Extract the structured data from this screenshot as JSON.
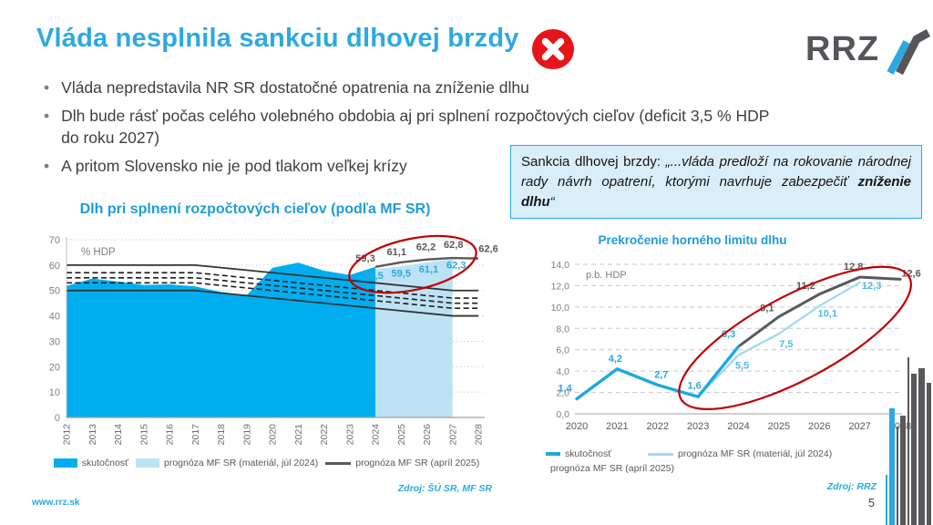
{
  "slide": {
    "title": "Vláda nesplnila sankciu dlhovej brzdy",
    "logo_text": "RRZ",
    "bullets": [
      "Vláda nepredstavila NR SR dostatočné opatrenia na zníženie dlhu",
      "Dlh bude rásť počas celého volebného obdobia aj pri splnení rozpočtových cieľov (deficit 3,5 % HDP\ndo roku 2027)",
      "A pritom Slovensko nie je pod tlakom veľkej krízy"
    ],
    "footer_url": "www.rrz.sk",
    "page_number": "5",
    "deco_bars": [
      [
        "blue",
        2,
        55
      ],
      [
        "blue",
        6,
        128
      ],
      [
        "gray",
        2,
        108
      ],
      [
        "gray",
        6,
        120
      ],
      [
        "gray",
        2,
        184
      ],
      [
        "gray",
        6,
        166
      ],
      [
        "gray",
        7,
        172
      ],
      [
        "gray",
        5,
        156
      ]
    ]
  },
  "callout": {
    "prefix": "Sankcia dlhovej brzdy: ",
    "quote_italic": "„...vláda predloží na rokovanie národnej rady návrh opatrení, ktorými navrhuje zabezpečiť ",
    "quote_bold": "zníženie dlhu",
    "quote_close": "“"
  },
  "colors": {
    "title_blue": "#2BAAE1",
    "chart_title_blue": "#1E9CD8",
    "accent_blue": "#29A9E0",
    "chart_blue": "#00AEEF",
    "chart_light_blue": "#BDE2F4",
    "light_blue_line": "#9FD8F1",
    "dark_gray": "#58595B",
    "band_black": "#2b2b2b",
    "red_annotation": "#C00000",
    "x_icon_red": "#E7151B",
    "text_dark": "#3F3F3F"
  },
  "chart_data": [
    {
      "type": "area",
      "title": "Dlh pri splnení rozpočtových cieľov (podľa MF SR)",
      "unit_label": "% HDP",
      "x": [
        2012,
        2013,
        2014,
        2015,
        2016,
        2017,
        2018,
        2019,
        2020,
        2021,
        2022,
        2023,
        2024,
        2025,
        2026,
        2027,
        2028
      ],
      "ylim": [
        0,
        70
      ],
      "ytick": 10,
      "grid": "dotted",
      "series": [
        {
          "name": "skutočnosť",
          "type": "area",
          "color": "#00AEEF",
          "x_start": 2012,
          "values": [
            51.8,
            54.7,
            53.5,
            52.2,
            52.4,
            51.6,
            49.4,
            48.1,
            58.9,
            61.0,
            57.8,
            56.1,
            59.3
          ],
          "show_labels": false
        },
        {
          "name": "prognóza MF SR (materiál, júl 2024)",
          "type": "area",
          "color": "#BDE2F4",
          "x_start": 2024,
          "values": [
            58.5,
            59.5,
            61.1,
            62.3
          ],
          "show_labels": true,
          "label_color": "#29A9E0"
        },
        {
          "name": "prognóza MF SR (apríl 2025)",
          "type": "line",
          "color": "#595959",
          "x_start": 2024,
          "values": [
            59.3,
            61.1,
            62.2,
            62.8,
            62.6
          ],
          "show_labels": true,
          "label_color": "#595959"
        }
      ],
      "debt_brake_bands": {
        "solid": [
          [
            60,
            50
          ],
          [
            50,
            40
          ]
        ],
        "dashed": [
          [
            57,
            47
          ],
          [
            55,
            45
          ],
          [
            53,
            43
          ]
        ],
        "flat_until": 2017,
        "decline_until": 2027
      },
      "highlight_ellipse": {
        "year": 2025.45,
        "value": 60.3,
        "color": "#C00000"
      },
      "source": "Zdroj: ŠÚ SR, MF SR"
    },
    {
      "type": "line",
      "title": "Prekročenie horného limitu dlhu",
      "unit_label": "p.b. HDP",
      "x": [
        2020,
        2021,
        2022,
        2023,
        2024,
        2025,
        2026,
        2027,
        2028
      ],
      "ylim": [
        0,
        14
      ],
      "ytick": 2,
      "grid": "dashed",
      "series": [
        {
          "name": "skutočnosť",
          "color": "#1BA9E1",
          "width": 3.4,
          "x_start": 2020,
          "values": [
            1.4,
            4.2,
            2.7,
            1.6,
            6.3
          ],
          "show_labels": true,
          "label_color": "#29A9E0"
        },
        {
          "name": "prognóza MF SR (materiál, júl 2024)",
          "color": "#9FD8F1",
          "width": 2.2,
          "x_start": 2023,
          "values": [
            1.6,
            5.5,
            7.5,
            10.1,
            12.3
          ],
          "show_labels": true,
          "skip_first_label": true,
          "label_color": "#4FB8E8"
        },
        {
          "name": "prognóza MF SR (apríl 2025)",
          "color": "#58595B",
          "width": 3,
          "x_start": 2024,
          "values": [
            6.3,
            9.1,
            11.2,
            12.8,
            12.6
          ],
          "show_labels": true,
          "skip_first_label": true,
          "label_color": "#595959"
        }
      ],
      "highlight_ellipse": {
        "year": 2025.4,
        "value": 7.1,
        "color": "#C00000"
      },
      "source": "Zdroj: RRZ"
    }
  ]
}
